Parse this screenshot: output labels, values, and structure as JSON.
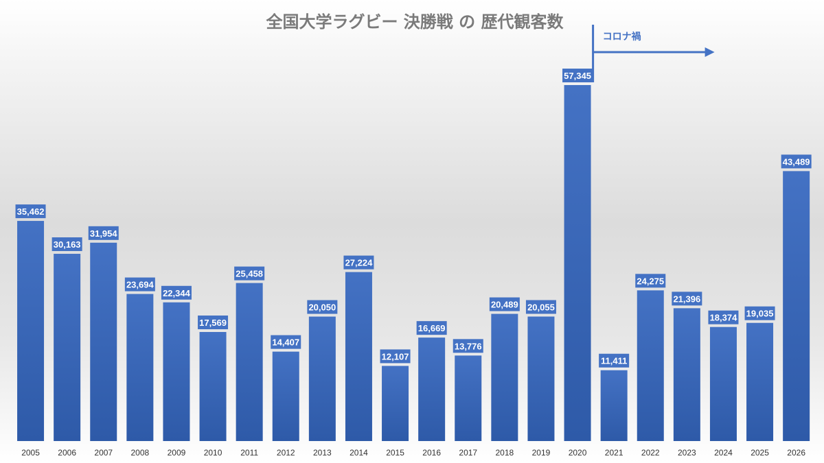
{
  "colors": {
    "bar": "#4472c4",
    "bar_dark": "#2e5aa8",
    "label_bg": "#4472c4",
    "label_text": "#ffffff",
    "annotation": "#4472c4",
    "title": "#7a7a7a",
    "tick": "#333333"
  },
  "chart_data": {
    "type": "bar",
    "title": "全国大学ラグビー 決勝戦 の 歴代観客数",
    "xlabel": "",
    "ylabel": "",
    "ylim": [
      0,
      60000
    ],
    "grid": false,
    "legend": "none",
    "categories": [
      "2005",
      "2006",
      "2007",
      "2008",
      "2009",
      "2010",
      "2011",
      "2012",
      "2013",
      "2014",
      "2015",
      "2016",
      "2017",
      "2018",
      "2019",
      "2020",
      "2021",
      "2022",
      "2023",
      "2024",
      "2025",
      "2026"
    ],
    "values": [
      35462,
      30163,
      31954,
      23694,
      22344,
      17569,
      25458,
      14407,
      20050,
      27224,
      12107,
      16669,
      13776,
      20489,
      20055,
      57345,
      11411,
      24275,
      21396,
      18374,
      19035,
      43489
    ],
    "data_labels": [
      "35,462",
      "30,163",
      "31,954",
      "23,694",
      "22,344",
      "17,569",
      "25,458",
      "14,407",
      "20,050",
      "27,224",
      "12,107",
      "16,669",
      "13,776",
      "20,489",
      "20,055",
      "57,345",
      "11,411",
      "24,275",
      "21,396",
      "18,374",
      "19,035",
      "43,489"
    ],
    "annotations": [
      {
        "text": "コロナ禍",
        "start_category": "2021",
        "arrow": "right",
        "marker": "vertical-line"
      }
    ]
  }
}
